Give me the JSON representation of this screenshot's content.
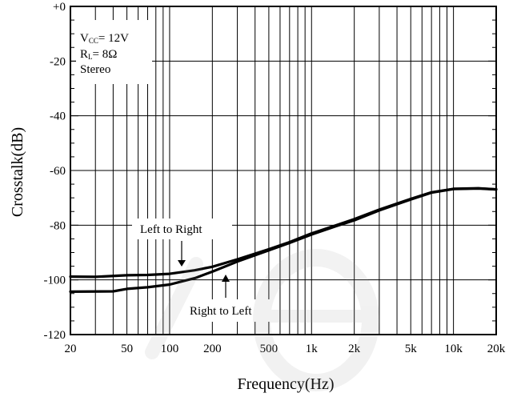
{
  "chart_data": {
    "type": "line",
    "xlabel": "Frequency(Hz)",
    "ylabel": "Crosstalk(dB)",
    "x_scale": "log",
    "xlim": [
      20,
      20000
    ],
    "ylim": [
      -120,
      0
    ],
    "grid": true,
    "x_ticks": [
      {
        "value": 20,
        "label": "20"
      },
      {
        "value": 50,
        "label": "50"
      },
      {
        "value": 100,
        "label": "100"
      },
      {
        "value": 200,
        "label": "200"
      },
      {
        "value": 500,
        "label": "500"
      },
      {
        "value": 1000,
        "label": "1k"
      },
      {
        "value": 2000,
        "label": "2k"
      },
      {
        "value": 5000,
        "label": "5k"
      },
      {
        "value": 10000,
        "label": "10k"
      },
      {
        "value": 20000,
        "label": "20k"
      }
    ],
    "y_ticks": [
      {
        "value": 0,
        "label": "+0"
      },
      {
        "value": -20,
        "label": "-20"
      },
      {
        "value": -40,
        "label": "-40"
      },
      {
        "value": -60,
        "label": "-60"
      },
      {
        "value": -80,
        "label": "-80"
      },
      {
        "value": -100,
        "label": "-100"
      },
      {
        "value": -120,
        "label": "-120"
      }
    ],
    "conditions": [
      {
        "main": "V",
        "sub": "CC",
        "rest": "= 12V"
      },
      {
        "main": "R",
        "sub": "L",
        "rest": "= 8Ω"
      },
      {
        "main": "Stereo",
        "sub": "",
        "rest": ""
      }
    ],
    "series": [
      {
        "name": "Left to Right",
        "x": [
          20,
          30,
          50,
          70,
          100,
          150,
          200,
          300,
          500,
          700,
          1000,
          1500,
          2000,
          3000,
          5000,
          7000,
          10000,
          15000,
          20000
        ],
        "y": [
          -98.8,
          -98.9,
          -98.3,
          -98.2,
          -97.8,
          -96.5,
          -95.2,
          -92.5,
          -88.8,
          -86.2,
          -83.0,
          -80.0,
          -77.8,
          -74.3,
          -70.4,
          -68.0,
          -66.7,
          -66.5,
          -66.9
        ]
      },
      {
        "name": "Right to Left",
        "x": [
          20,
          40,
          50,
          70,
          100,
          150,
          200,
          300,
          500,
          700,
          1000,
          1500,
          2000,
          3000,
          5000,
          7000,
          10000,
          15000,
          20000
        ],
        "y": [
          -104.3,
          -104.2,
          -103.3,
          -102.7,
          -101.7,
          -99.4,
          -97.0,
          -93.3,
          -89.2,
          -86.5,
          -83.4,
          -80.3,
          -78.2,
          -74.6,
          -70.6,
          -68.1,
          -66.8,
          -66.6,
          -66.9
        ]
      }
    ],
    "annotations": [
      {
        "text": "Left to Right",
        "series": 0,
        "at_x": 120
      },
      {
        "text": "Right to Left",
        "series": 1,
        "at_x": 240
      }
    ]
  }
}
